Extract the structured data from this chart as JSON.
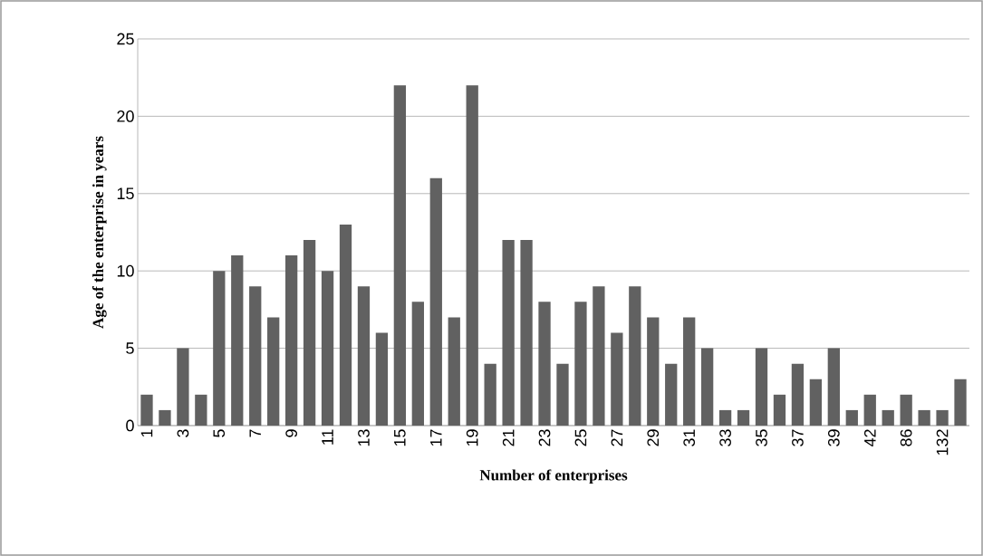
{
  "chart_data": {
    "type": "bar",
    "xlabel": "Number of enterprises",
    "ylabel": "Age of the enterprise in years",
    "categories": [
      "1",
      null,
      "3",
      null,
      "5",
      null,
      "7",
      null,
      "9",
      null,
      "11",
      null,
      "13",
      null,
      "15",
      null,
      "17",
      null,
      "19",
      null,
      "21",
      null,
      "23",
      null,
      "25",
      null,
      "27",
      null,
      "29",
      null,
      "31",
      null,
      "33",
      null,
      "35",
      null,
      "37",
      null,
      "39",
      null,
      "42",
      null,
      "86",
      null,
      "132",
      null
    ],
    "values": [
      2,
      1,
      5,
      2,
      10,
      11,
      9,
      7,
      11,
      12,
      10,
      13,
      9,
      6,
      22,
      8,
      16,
      7,
      22,
      4,
      12,
      12,
      8,
      4,
      8,
      9,
      6,
      9,
      7,
      4,
      7,
      5,
      1,
      1,
      5,
      2,
      4,
      3,
      5,
      1,
      2,
      1,
      2,
      1,
      1,
      3
    ],
    "color": "#616161",
    "ylim": [
      0,
      25
    ],
    "yticks": [
      0,
      5,
      10,
      15,
      20,
      25
    ],
    "grid": true
  }
}
